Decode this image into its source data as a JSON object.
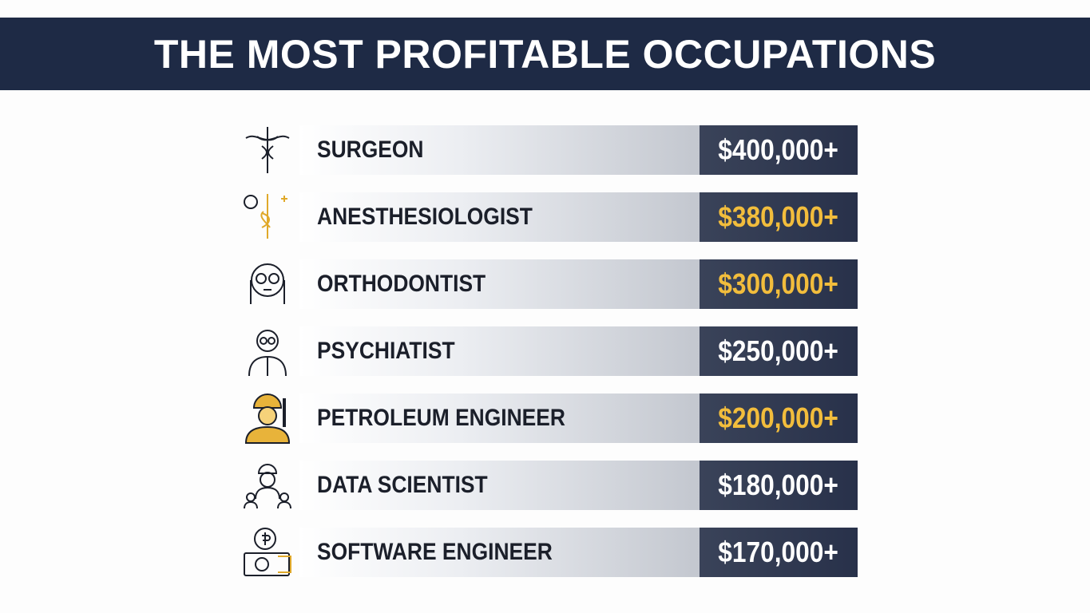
{
  "header": {
    "title": "THE MOST PROFITABLE OCCUPATIONS"
  },
  "rows": [
    {
      "occupation": "SURGEON",
      "salary": "$400,000+",
      "salary_color": "#ffffff"
    },
    {
      "occupation": "ANESTHESIOLOGIST",
      "salary": "$380,000+",
      "salary_color": "#f2bd3c"
    },
    {
      "occupation": "ORTHODONTIST",
      "salary": "$300,000+",
      "salary_color": "#f2bd3c"
    },
    {
      "occupation": "PSYCHIATIST",
      "salary": "$250,000+",
      "salary_color": "#ffffff"
    },
    {
      "occupation": "PETROLEUM ENGINEER",
      "salary": "$200,000+",
      "salary_color": "#f2bd3c"
    },
    {
      "occupation": "DATA SCIENTIST",
      "salary": "$180,000+",
      "salary_color": "#ffffff"
    },
    {
      "occupation": "SOFTWARE ENGINEER",
      "salary": "$170,000+",
      "salary_color": "#ffffff"
    }
  ]
}
